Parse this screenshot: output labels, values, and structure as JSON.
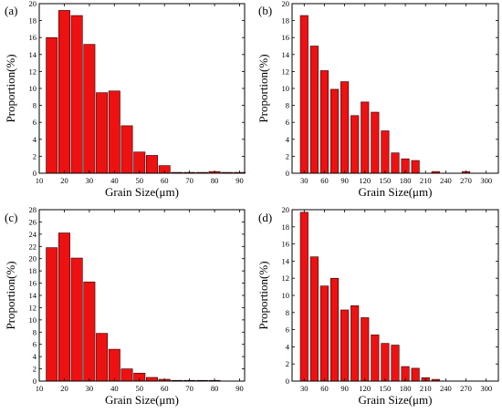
{
  "colors": {
    "bar_fill": "#ee1111",
    "bar_stroke": "#2a0000",
    "axis": "#000000"
  },
  "chart_data": [
    {
      "panel": "(a)",
      "type": "bar",
      "xlabel": "Grain Size(μm)",
      "ylabel": "Proportion(%)",
      "xlim": [
        10,
        92
      ],
      "ylim": [
        0,
        20
      ],
      "xticks": [
        10,
        20,
        30,
        40,
        50,
        60,
        70,
        80,
        90
      ],
      "yticks": [
        0,
        2,
        4,
        6,
        8,
        10,
        12,
        14,
        16,
        18,
        20
      ],
      "bar_width": 4.5,
      "x": [
        15,
        20,
        25,
        30,
        35,
        40,
        45,
        50,
        55,
        60,
        65,
        70,
        75,
        80,
        85,
        90
      ],
      "values": [
        16.0,
        19.2,
        18.6,
        15.2,
        9.5,
        9.7,
        5.6,
        2.5,
        2.1,
        0.9,
        0.1,
        0.1,
        0.1,
        0.2,
        0.1,
        0.1
      ]
    },
    {
      "panel": "(b)",
      "type": "bar",
      "xlabel": "Grain Size(μm)",
      "ylabel": "Proportion(%)",
      "xlim": [
        12,
        318
      ],
      "ylim": [
        0,
        20
      ],
      "xticks": [
        30,
        60,
        90,
        120,
        150,
        180,
        210,
        240,
        270,
        300
      ],
      "yticks": [
        0,
        2,
        4,
        6,
        8,
        10,
        12,
        14,
        16,
        18,
        20
      ],
      "bar_width": 11.5,
      "x": [
        30,
        45,
        60,
        75,
        90,
        105,
        120,
        135,
        150,
        165,
        180,
        195,
        210,
        225,
        240,
        255,
        270,
        285,
        300,
        315
      ],
      "values": [
        18.6,
        15.0,
        12.1,
        9.9,
        10.8,
        6.8,
        8.4,
        7.2,
        5.0,
        2.4,
        1.7,
        1.5,
        0.0,
        0.2,
        0.0,
        0.0,
        0.2,
        0.0,
        0.0,
        0.0
      ]
    },
    {
      "panel": "(c)",
      "type": "bar",
      "xlabel": "Grain Size(μm)",
      "ylabel": "Proportion(%)",
      "xlim": [
        10,
        92
      ],
      "ylim": [
        0,
        28
      ],
      "xticks": [
        10,
        20,
        30,
        40,
        50,
        60,
        70,
        80,
        90
      ],
      "yticks": [
        0,
        2,
        4,
        6,
        8,
        10,
        12,
        14,
        16,
        18,
        20,
        22,
        24,
        26,
        28
      ],
      "bar_width": 4.5,
      "x": [
        15,
        20,
        25,
        30,
        35,
        40,
        45,
        50,
        55,
        60,
        65,
        70,
        75,
        80,
        85,
        90
      ],
      "values": [
        21.8,
        24.2,
        20.1,
        16.2,
        7.8,
        5.2,
        2.0,
        1.3,
        0.6,
        0.3,
        0.1,
        0.05,
        0.05,
        0.05,
        0.0,
        0.0
      ]
    },
    {
      "panel": "(d)",
      "type": "bar",
      "xlabel": "Grain Size(μm)",
      "ylabel": "Proportion(%)",
      "xlim": [
        12,
        318
      ],
      "ylim": [
        0,
        20
      ],
      "xticks": [
        30,
        60,
        90,
        120,
        150,
        180,
        210,
        240,
        270,
        300
      ],
      "yticks": [
        0,
        2,
        4,
        6,
        8,
        10,
        12,
        14,
        16,
        18,
        20
      ],
      "bar_width": 11.5,
      "x": [
        30,
        45,
        60,
        75,
        90,
        105,
        120,
        135,
        150,
        165,
        180,
        195,
        210,
        225,
        240,
        255,
        270,
        285,
        300,
        315
      ],
      "values": [
        19.7,
        14.5,
        11.1,
        12.0,
        8.3,
        8.8,
        7.4,
        5.4,
        4.4,
        4.2,
        1.7,
        1.5,
        0.4,
        0.2,
        0.0,
        0.0,
        0.0,
        0.0,
        0.0,
        0.0
      ]
    }
  ]
}
